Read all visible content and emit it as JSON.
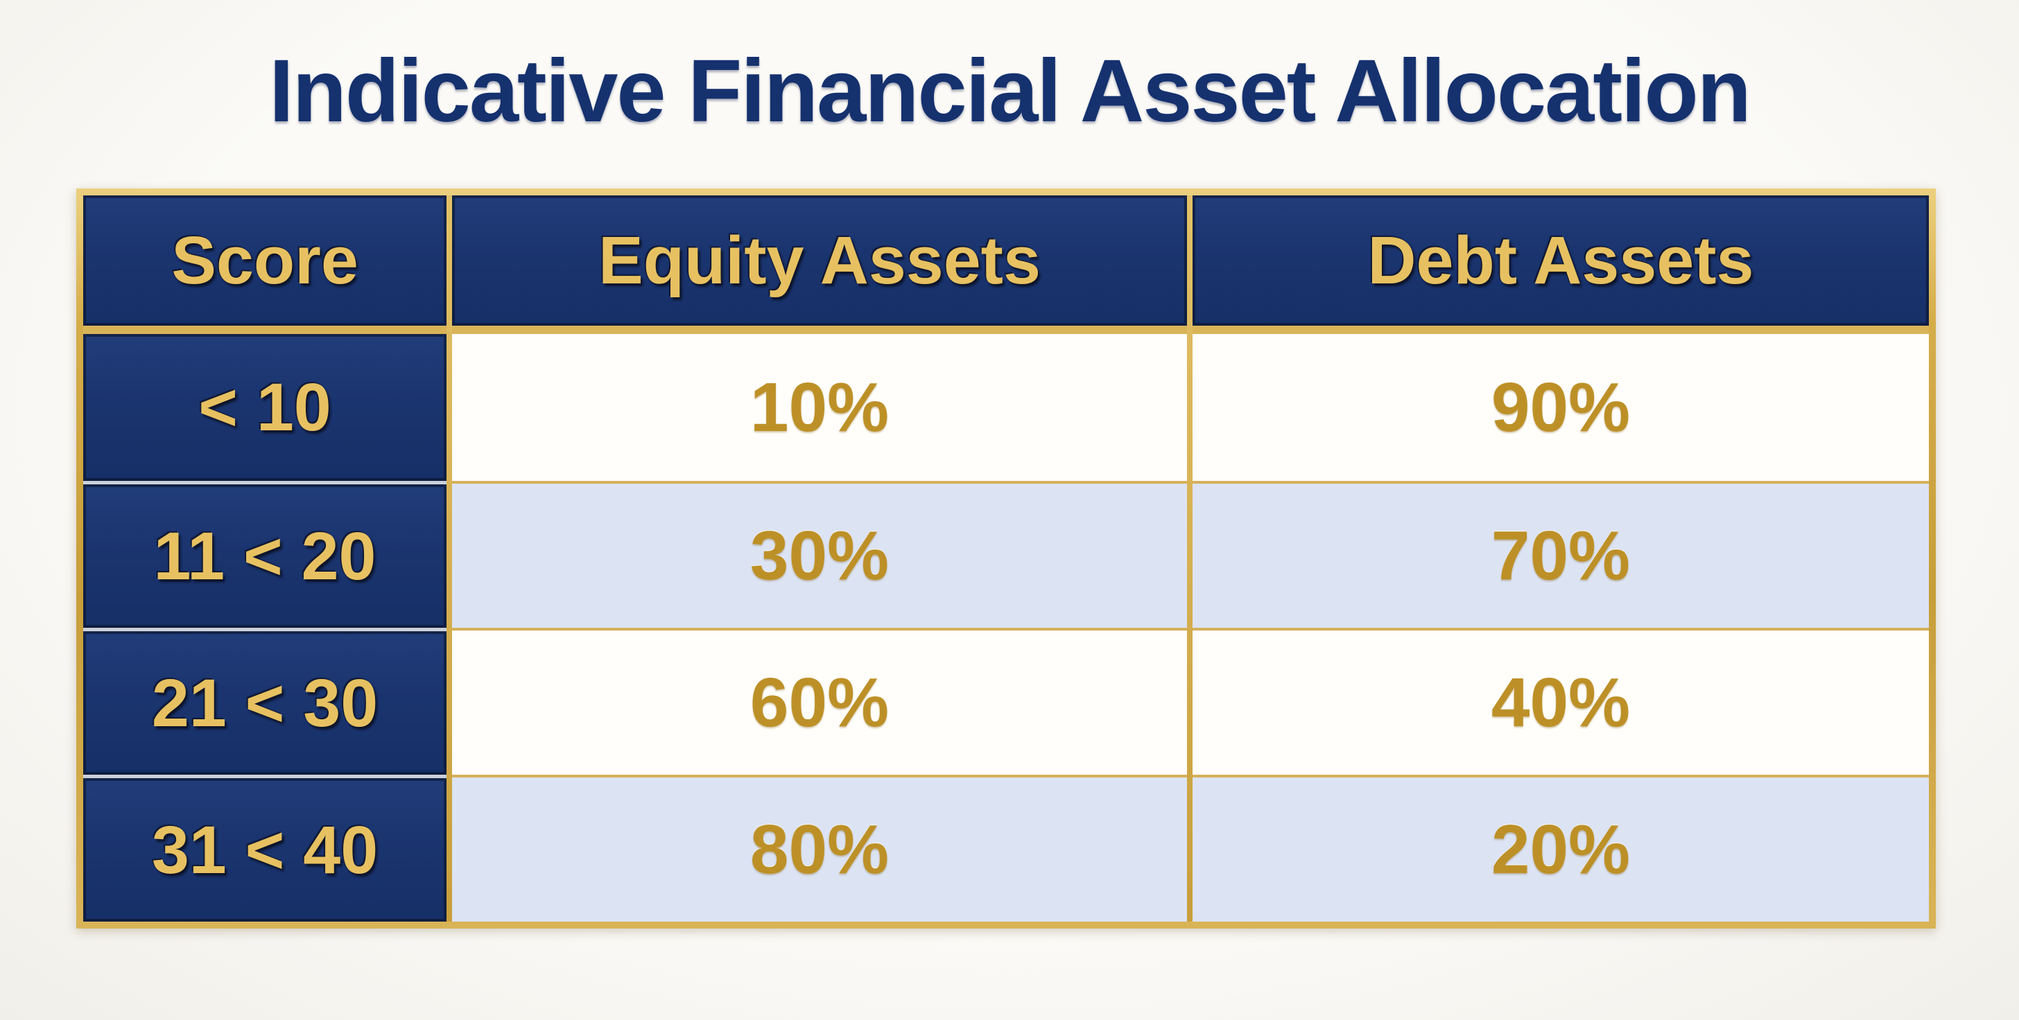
{
  "title": "Indicative Financial Asset Allocation",
  "table": {
    "columns": [
      {
        "label": "Score"
      },
      {
        "label": "Equity Assets"
      },
      {
        "label": "Debt Assets"
      }
    ],
    "rows": [
      {
        "score": "< 10",
        "equity": "10%",
        "debt": "90%"
      },
      {
        "score": "11 < 20",
        "equity": "30%",
        "debt": "70%"
      },
      {
        "score": "21 < 30",
        "equity": "60%",
        "debt": "40%"
      },
      {
        "score": "31 < 40",
        "equity": "80%",
        "debt": "20%"
      }
    ]
  },
  "chart_data": {
    "type": "table",
    "title": "Indicative Financial Asset Allocation",
    "columns": [
      "Score",
      "Equity Assets",
      "Debt Assets"
    ],
    "rows": [
      [
        "< 10",
        "10%",
        "90%"
      ],
      [
        "11 < 20",
        "30%",
        "70%"
      ],
      [
        "21 < 30",
        "60%",
        "40%"
      ],
      [
        "31 < 40",
        "80%",
        "20%"
      ]
    ],
    "equity_values_pct": [
      10,
      30,
      60,
      80
    ],
    "debt_values_pct": [
      90,
      70,
      40,
      20
    ]
  },
  "colors": {
    "title_navy": "#15316e",
    "cell_navy": "#1b3570",
    "gold_border": "#c89f3c",
    "gold_header_text": "#e7c161",
    "gold_value_text": "#bd9027",
    "row_white": "#fffefa",
    "row_lavender": "#dce3f3",
    "silver_separator": "#ccd1da",
    "page_background": "#f7f5f1"
  }
}
